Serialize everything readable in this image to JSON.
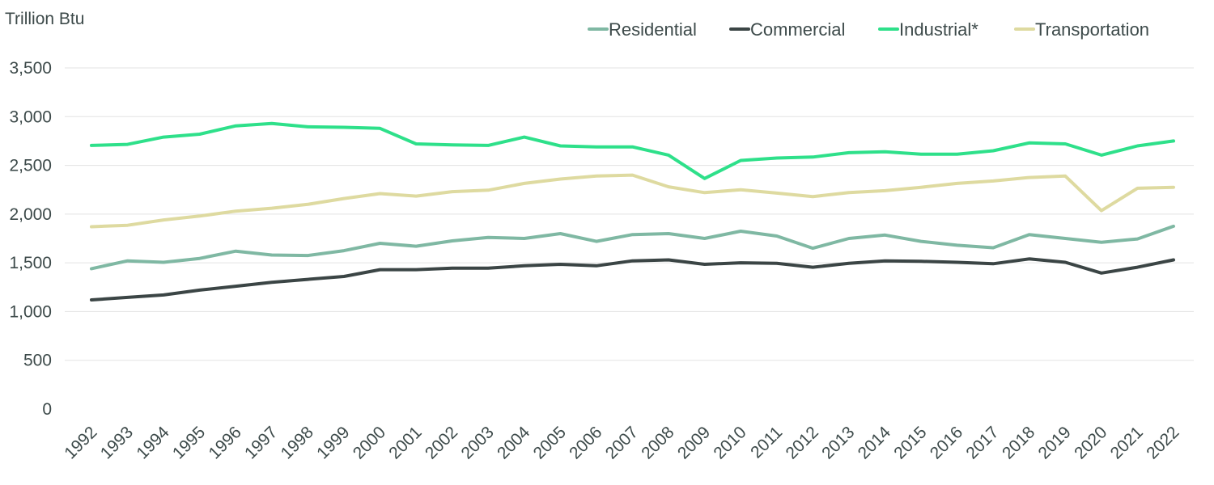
{
  "chart_data": {
    "type": "line",
    "title": "",
    "ylabel": "Trillion Btu",
    "xlabel": "",
    "ylim": [
      0,
      3500
    ],
    "yticks": [
      0,
      500,
      1000,
      1500,
      2000,
      2500,
      3000,
      3500
    ],
    "ytick_labels": [
      "0",
      "500",
      "1,000",
      "1,500",
      "2,000",
      "2,500",
      "3,000",
      "3,500"
    ],
    "grid": true,
    "legend_position": "top-right",
    "x": [
      "1992",
      "1993",
      "1994",
      "1995",
      "1996",
      "1997",
      "1998",
      "1999",
      "2000",
      "2001",
      "2002",
      "2003",
      "2004",
      "2005",
      "2006",
      "2007",
      "2008",
      "2009",
      "2010",
      "2011",
      "2012",
      "2013",
      "2014",
      "2015",
      "2016",
      "2017",
      "2018",
      "2019",
      "2020",
      "2021",
      "2022"
    ],
    "series": [
      {
        "name": "Residential",
        "color": "#7fb8a3",
        "values": [
          1440,
          1520,
          1505,
          1545,
          1620,
          1580,
          1575,
          1625,
          1700,
          1670,
          1725,
          1760,
          1750,
          1800,
          1720,
          1790,
          1800,
          1750,
          1825,
          1775,
          1650,
          1750,
          1785,
          1720,
          1680,
          1655,
          1790,
          1750,
          1710,
          1745,
          1875
        ]
      },
      {
        "name": "Commercial",
        "color": "#3b4545",
        "values": [
          1120,
          1145,
          1170,
          1220,
          1260,
          1300,
          1330,
          1360,
          1430,
          1430,
          1445,
          1445,
          1470,
          1485,
          1470,
          1520,
          1530,
          1485,
          1500,
          1495,
          1455,
          1495,
          1520,
          1515,
          1505,
          1490,
          1540,
          1505,
          1395,
          1455,
          1530
        ]
      },
      {
        "name": "Industrial*",
        "color": "#2ee08a",
        "values": [
          2705,
          2715,
          2790,
          2820,
          2905,
          2930,
          2895,
          2890,
          2880,
          2720,
          2710,
          2705,
          2790,
          2700,
          2690,
          2690,
          2605,
          2365,
          2550,
          2575,
          2585,
          2630,
          2640,
          2615,
          2615,
          2650,
          2730,
          2720,
          2605,
          2700,
          2750
        ]
      },
      {
        "name": "Transportation",
        "color": "#dedaa0",
        "values": [
          1870,
          1885,
          1940,
          1980,
          2030,
          2060,
          2100,
          2160,
          2210,
          2185,
          2230,
          2245,
          2315,
          2360,
          2390,
          2400,
          2280,
          2220,
          2250,
          2215,
          2180,
          2220,
          2240,
          2275,
          2315,
          2340,
          2375,
          2390,
          2035,
          2265,
          2275
        ]
      }
    ]
  }
}
